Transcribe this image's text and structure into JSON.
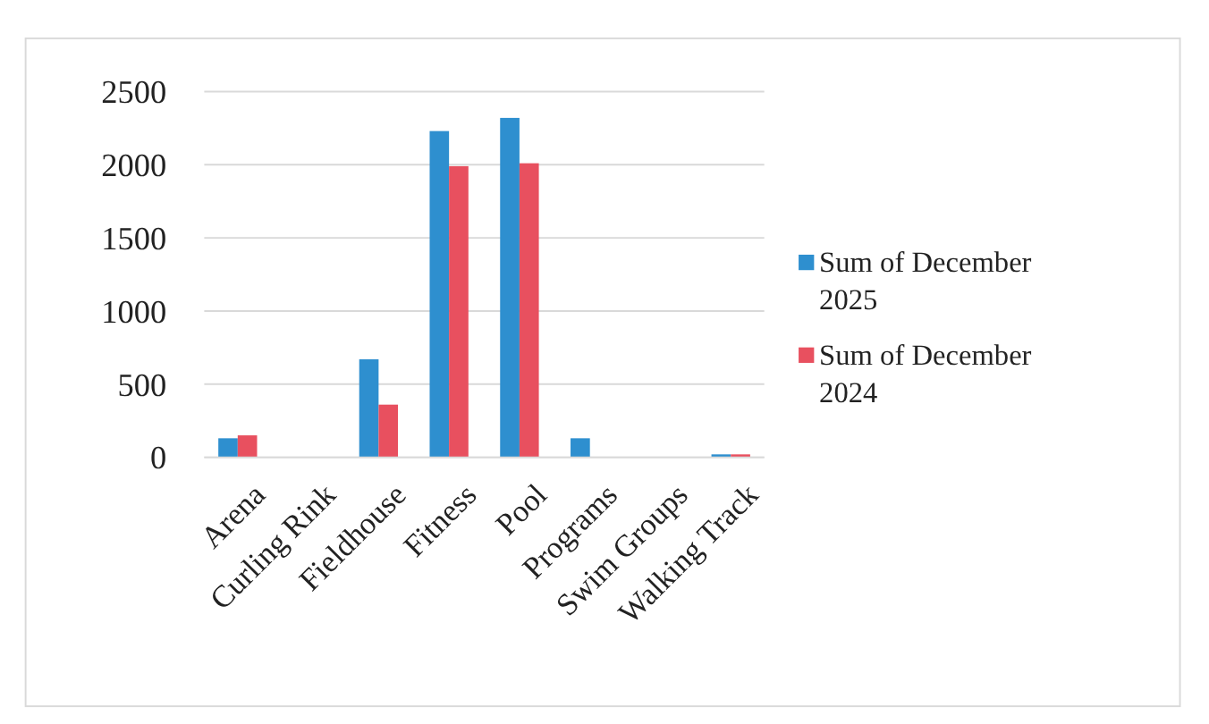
{
  "chart_data": {
    "type": "bar",
    "categories": [
      "Arena",
      "Curling Rink",
      "Fieldhouse",
      "Fitness",
      "Pool",
      "Programs",
      "Swim Groups",
      "Walking Track"
    ],
    "series": [
      {
        "name": "Sum of December 2025",
        "color": "#2e8fcf",
        "values": [
          130,
          0,
          670,
          2230,
          2320,
          130,
          0,
          20
        ]
      },
      {
        "name": "Sum of December 2024",
        "color": "#e8505f",
        "values": [
          150,
          0,
          360,
          1990,
          2010,
          0,
          0,
          20
        ]
      }
    ],
    "ylim": [
      0,
      2500
    ],
    "yticks": [
      0,
      500,
      1000,
      1500,
      2000,
      2500
    ],
    "grid": "y",
    "legend": "right"
  }
}
